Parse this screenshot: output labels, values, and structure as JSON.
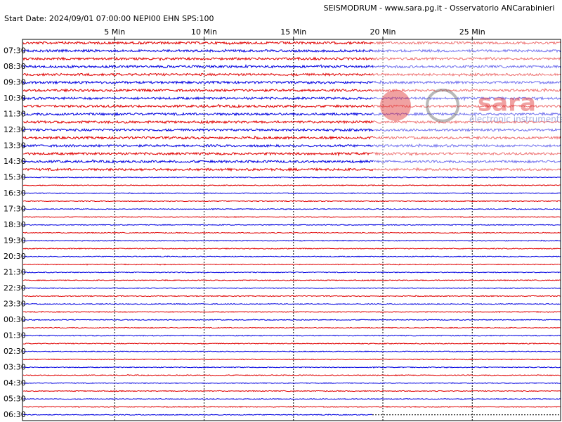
{
  "header": {
    "title": "SEISMODRUM - www.sara.pg.it - Osservatorio ANCarabinieri",
    "start_info": "Start Date: 2024/09/01 07:00:00 NEPI00 EHN  SPS:100"
  },
  "time_axis": {
    "ticks": [
      "5 Min",
      "10 Min",
      "15 Min",
      "20 Min",
      "25 Min"
    ]
  },
  "row_labels": [
    "07:30",
    "08:30",
    "09:30",
    "10:30",
    "11:30",
    "12:30",
    "13:30",
    "14:30",
    "15:30",
    "16:30",
    "17:30",
    "18:30",
    "19:30",
    "20:30",
    "21:30",
    "22:30",
    "23:30",
    "00:30",
    "01:30",
    "02:30",
    "03:30",
    "04:30",
    "05:30",
    "06:30"
  ],
  "watermark": {
    "brand": "sara",
    "tagline": "electronic instruments"
  }
}
